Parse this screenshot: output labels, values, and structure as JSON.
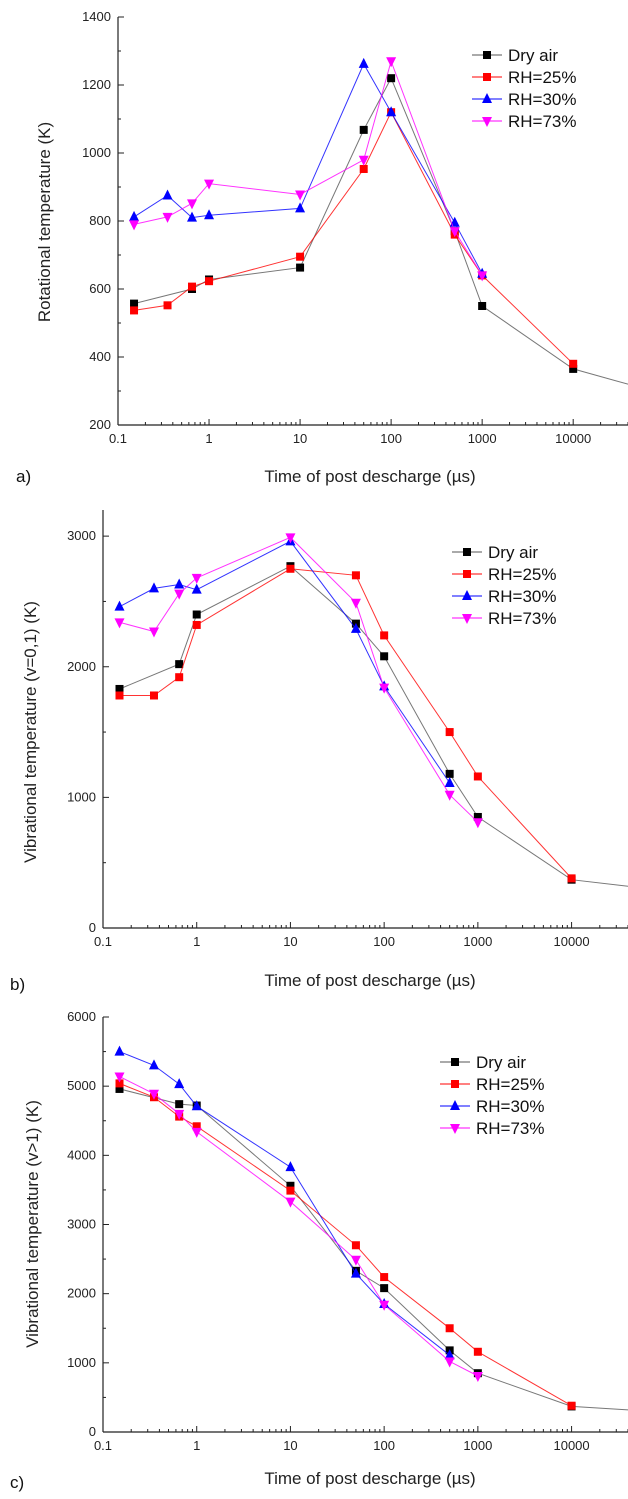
{
  "panels": [
    {
      "panel_label": "a)",
      "chart_data": {
        "type": "line",
        "xscale": "log",
        "xlim": [
          0.1,
          40000
        ],
        "ylim": [
          200,
          1400
        ],
        "xticks": [
          0.1,
          1,
          10,
          100,
          1000,
          10000
        ],
        "xtick_labels": [
          "0.1",
          "1",
          "10",
          "100",
          "1000",
          "10000"
        ],
        "yticks": [
          200,
          400,
          600,
          800,
          1000,
          1200,
          1400
        ],
        "xlabel": "Time of post descharge (µs)",
        "ylabel": "Rotational temperature (K)",
        "legend_position": "top-right",
        "series": [
          {
            "name": "Dry air",
            "color": "#000000",
            "marker": "square",
            "x": [
              0.15,
              0.65,
              1,
              10,
              50,
              100,
              500,
              1000,
              10000,
              40000
            ],
            "y": [
              557,
              600,
              628,
              663,
              1068,
              1220,
              770,
              550,
              365,
              320
            ]
          },
          {
            "name": "RH=25%",
            "color": "#ff0000",
            "marker": "square",
            "x": [
              0.15,
              0.35,
              0.65,
              1,
              10,
              50,
              100,
              500,
              1000,
              10000
            ],
            "y": [
              537,
              552,
              607,
              623,
              695,
              953,
              1120,
              760,
              640,
              380
            ]
          },
          {
            "name": "RH=30%",
            "color": "#0000ff",
            "marker": "triangle-up",
            "x": [
              0.15,
              0.35,
              0.65,
              1,
              10,
              50,
              100,
              500,
              1000
            ],
            "y": [
              812,
              875,
              810,
              817,
              837,
              1262,
              1120,
              795,
              645
            ]
          },
          {
            "name": "RH=73%",
            "color": "#ff00ff",
            "marker": "triangle-down",
            "x": [
              0.15,
              0.35,
              0.65,
              1,
              10,
              50,
              100,
              500,
              1000
            ],
            "y": [
              790,
              812,
              852,
              910,
              878,
              980,
              1270,
              770,
              640
            ]
          }
        ]
      }
    },
    {
      "panel_label": "b)",
      "chart_data": {
        "type": "line",
        "xscale": "log",
        "xlim": [
          0.1,
          40000
        ],
        "ylim": [
          0,
          3200
        ],
        "xticks": [
          0.1,
          1,
          10,
          100,
          1000,
          10000
        ],
        "xtick_labels": [
          "0.1",
          "1",
          "10",
          "100",
          "1000",
          "10000"
        ],
        "yticks": [
          0,
          1000,
          2000,
          3000
        ],
        "xlabel": "Time of post descharge (µs)",
        "ylabel": "Vibrational temperature (v=0,1) (K)",
        "legend_position": "top-right",
        "series": [
          {
            "name": "Dry air",
            "color": "#000000",
            "marker": "square",
            "x": [
              0.15,
              0.65,
              1,
              10,
              50,
              100,
              500,
              1000,
              10000,
              40000
            ],
            "y": [
              1830,
              2020,
              2400,
              2770,
              2330,
              2080,
              1180,
              850,
              370,
              320
            ]
          },
          {
            "name": "RH=25%",
            "color": "#ff0000",
            "marker": "square",
            "x": [
              0.15,
              0.35,
              0.65,
              1,
              10,
              50,
              100,
              500,
              1000,
              10000
            ],
            "y": [
              1780,
              1780,
              1920,
              2320,
              2750,
              2700,
              2240,
              1500,
              1160,
              380
            ]
          },
          {
            "name": "RH=30%",
            "color": "#0000ff",
            "marker": "triangle-up",
            "x": [
              0.15,
              0.35,
              0.65,
              1,
              10,
              50,
              100,
              500
            ],
            "y": [
              2460,
              2600,
              2630,
              2590,
              2960,
              2290,
              1850,
              1110
            ]
          },
          {
            "name": "RH=73%",
            "color": "#ff00ff",
            "marker": "triangle-down",
            "x": [
              0.15,
              0.35,
              0.65,
              1,
              10,
              50,
              100,
              500,
              1000
            ],
            "y": [
              2340,
              2270,
              2560,
              2680,
              2990,
              2490,
              1840,
              1020,
              810
            ]
          }
        ]
      }
    },
    {
      "panel_label": "c)",
      "chart_data": {
        "type": "line",
        "xscale": "log",
        "xlim": [
          0.1,
          40000
        ],
        "ylim": [
          0,
          6000
        ],
        "xticks": [
          0.1,
          1,
          10,
          100,
          1000,
          10000
        ],
        "xtick_labels": [
          "0.1",
          "1",
          "10",
          "100",
          "1000",
          "10000"
        ],
        "yticks": [
          0,
          1000,
          2000,
          3000,
          4000,
          5000,
          6000
        ],
        "xlabel": "Time of post descharge (µs)",
        "ylabel": "Vibrational temperature (v>1) (K)",
        "legend_position": "top-right",
        "series": [
          {
            "name": "Dry air",
            "color": "#000000",
            "marker": "square",
            "x": [
              0.15,
              0.65,
              1,
              10,
              50,
              100,
              500,
              1000,
              10000,
              40000
            ],
            "y": [
              4960,
              4740,
              4720,
              3560,
              2330,
              2080,
              1180,
              850,
              370,
              320
            ]
          },
          {
            "name": "RH=25%",
            "color": "#ff0000",
            "marker": "square",
            "x": [
              0.15,
              0.35,
              0.65,
              1,
              10,
              50,
              100,
              500,
              1000,
              10000
            ],
            "y": [
              5040,
              4840,
              4560,
              4420,
              3490,
              2700,
              2240,
              1500,
              1160,
              380
            ]
          },
          {
            "name": "RH=30%",
            "color": "#0000ff",
            "marker": "triangle-up",
            "x": [
              0.15,
              0.35,
              0.65,
              1,
              10,
              50,
              100,
              500
            ],
            "y": [
              5500,
              5300,
              5030,
              4710,
              3830,
              2290,
              1850,
              1110
            ]
          },
          {
            "name": "RH=73%",
            "color": "#ff00ff",
            "marker": "triangle-down",
            "x": [
              0.15,
              0.35,
              0.65,
              1,
              10,
              50,
              100,
              500,
              1000
            ],
            "y": [
              5140,
              4890,
              4600,
              4340,
              3330,
              2490,
              1840,
              1020,
              810
            ]
          }
        ]
      }
    }
  ]
}
